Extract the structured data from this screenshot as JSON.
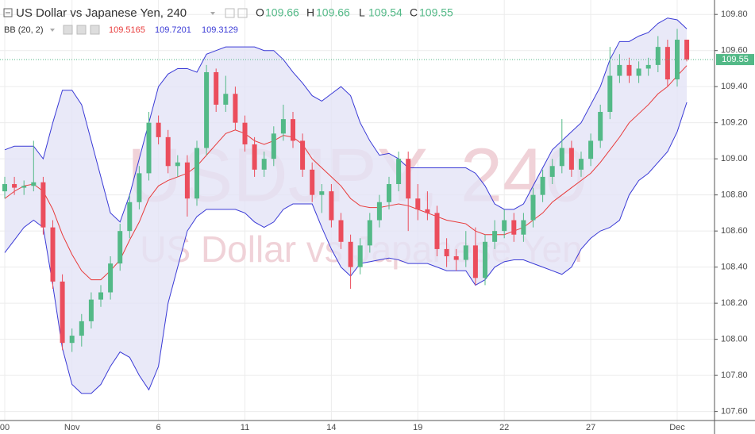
{
  "chart_data": {
    "type": "candlestick",
    "title": "US Dollar vs Japanese Yen, 240",
    "watermark": "USDJPY, 240",
    "watermark_subtitle": "US Dollar vs Japanese Yen",
    "header_labels": {
      "open": "O",
      "high": "H",
      "low": "L",
      "close": "C"
    },
    "indicator": "BB (20, 2)",
    "up_color": "#53b987",
    "down_color": "#eb4d5c",
    "basis_color": "#e83a3a",
    "band_color": "#3a3ad6",
    "band_fill": "#e3e3f6",
    "categories": [
      "00",
      null,
      null,
      null,
      null,
      null,
      null,
      "Nov",
      null,
      null,
      null,
      null,
      null,
      null,
      null,
      null,
      "6",
      null,
      null,
      null,
      null,
      null,
      null,
      null,
      null,
      "11",
      null,
      null,
      null,
      null,
      null,
      null,
      null,
      null,
      "14",
      null,
      null,
      null,
      null,
      null,
      null,
      null,
      null,
      "19",
      null,
      null,
      null,
      null,
      null,
      null,
      null,
      null,
      "22",
      null,
      null,
      null,
      null,
      null,
      null,
      null,
      null,
      "27",
      null,
      null,
      null,
      null,
      null,
      null,
      null,
      null,
      "Dec",
      null
    ],
    "ohlc": {
      "open": [
        108.82,
        108.86,
        108.84,
        108.85,
        108.87,
        108.62,
        108.32,
        107.98,
        108.02,
        108.1,
        108.22,
        108.26,
        108.42,
        108.6,
        108.76,
        108.92,
        109.2,
        109.12,
        108.96,
        108.98,
        108.78,
        109.06,
        109.48,
        109.3,
        109.36,
        109.2,
        109.08,
        108.94,
        109.0,
        109.14,
        109.22,
        109.1,
        108.94,
        108.8,
        108.82,
        108.66,
        108.54,
        108.4,
        108.52,
        108.66,
        108.76,
        108.86,
        109.0,
        108.78,
        108.72,
        108.7,
        108.5,
        108.46,
        108.44,
        108.52,
        108.34,
        108.54,
        108.6,
        108.66,
        108.58,
        108.66,
        108.8,
        108.9,
        108.96,
        109.06,
        108.94,
        109.0,
        109.1,
        109.26,
        109.46,
        109.52,
        109.46,
        109.5,
        109.52,
        109.62,
        109.44,
        109.66
      ],
      "high": [
        108.9,
        108.9,
        108.88,
        109.1,
        108.9,
        108.66,
        108.36,
        108.06,
        108.14,
        108.26,
        108.3,
        108.46,
        108.64,
        108.8,
        108.96,
        109.26,
        109.24,
        109.16,
        109.02,
        109.02,
        109.1,
        109.52,
        109.5,
        109.46,
        109.4,
        109.24,
        109.12,
        109.04,
        109.18,
        109.3,
        109.26,
        109.14,
        108.98,
        108.86,
        108.86,
        108.7,
        108.58,
        108.56,
        108.7,
        108.8,
        108.9,
        109.04,
        109.04,
        108.86,
        108.82,
        108.74,
        108.56,
        108.5,
        108.6,
        108.62,
        108.58,
        108.66,
        108.72,
        108.7,
        108.7,
        108.84,
        108.94,
        109.0,
        109.22,
        109.1,
        109.04,
        109.14,
        109.3,
        109.62,
        109.58,
        109.56,
        109.54,
        109.56,
        109.68,
        109.66,
        109.72,
        109.66
      ],
      "low": [
        108.78,
        108.8,
        108.8,
        108.82,
        108.58,
        108.28,
        107.94,
        107.93,
        107.96,
        108.06,
        108.18,
        108.22,
        108.38,
        108.56,
        108.72,
        108.88,
        109.08,
        108.92,
        108.9,
        108.68,
        108.74,
        109.02,
        109.26,
        109.26,
        109.16,
        109.04,
        108.9,
        108.9,
        108.96,
        109.1,
        109.06,
        108.9,
        108.76,
        108.7,
        108.62,
        108.5,
        108.28,
        108.36,
        108.48,
        108.62,
        108.72,
        108.82,
        108.6,
        108.66,
        108.66,
        108.46,
        108.4,
        108.38,
        108.4,
        108.3,
        108.3,
        108.5,
        108.56,
        108.54,
        108.54,
        108.62,
        108.76,
        108.86,
        108.92,
        108.9,
        108.9,
        108.96,
        109.06,
        109.22,
        109.42,
        109.42,
        109.42,
        109.46,
        109.48,
        109.4,
        109.4,
        109.54
      ],
      "close": [
        108.86,
        108.84,
        108.85,
        108.87,
        108.62,
        108.32,
        107.98,
        108.02,
        108.1,
        108.22,
        108.26,
        108.42,
        108.6,
        108.76,
        108.92,
        109.2,
        109.12,
        108.96,
        108.98,
        108.78,
        109.06,
        109.48,
        109.3,
        109.36,
        109.2,
        109.08,
        108.94,
        109.0,
        109.14,
        109.22,
        109.1,
        108.94,
        108.8,
        108.82,
        108.66,
        108.54,
        108.4,
        108.52,
        108.66,
        108.76,
        108.86,
        109.0,
        108.78,
        108.72,
        108.7,
        108.5,
        108.46,
        108.44,
        108.52,
        108.34,
        108.54,
        108.6,
        108.66,
        108.58,
        108.66,
        108.8,
        108.9,
        108.96,
        109.06,
        108.94,
        109.0,
        109.1,
        109.26,
        109.46,
        109.52,
        109.46,
        109.5,
        109.52,
        109.62,
        109.44,
        109.66,
        109.55
      ]
    },
    "bb_upper": [
      109.05,
      109.07,
      109.07,
      109.07,
      109.0,
      109.2,
      109.38,
      109.38,
      109.3,
      109.1,
      108.9,
      108.7,
      108.65,
      108.8,
      109.0,
      109.2,
      109.4,
      109.47,
      109.5,
      109.5,
      109.48,
      109.58,
      109.6,
      109.62,
      109.62,
      109.62,
      109.62,
      109.6,
      109.6,
      109.55,
      109.48,
      109.42,
      109.35,
      109.32,
      109.36,
      109.4,
      109.35,
      109.2,
      109.1,
      109.02,
      109.03,
      109.0,
      108.95,
      108.95,
      108.95,
      108.95,
      108.95,
      108.95,
      108.95,
      108.92,
      108.85,
      108.75,
      108.72,
      108.72,
      108.75,
      108.85,
      108.95,
      109.05,
      109.1,
      109.15,
      109.2,
      109.3,
      109.4,
      109.55,
      109.65,
      109.65,
      109.68,
      109.7,
      109.75,
      109.78,
      109.77,
      109.7201
    ],
    "bb_basis": [
      108.78,
      108.82,
      108.85,
      108.86,
      108.82,
      108.72,
      108.58,
      108.47,
      108.38,
      108.33,
      108.33,
      108.38,
      108.44,
      108.55,
      108.65,
      108.78,
      108.85,
      108.88,
      108.9,
      108.92,
      108.96,
      109.02,
      109.08,
      109.14,
      109.16,
      109.14,
      109.1,
      109.08,
      109.1,
      109.13,
      109.12,
      109.08,
      109.0,
      108.95,
      108.9,
      108.85,
      108.78,
      108.74,
      108.73,
      108.73,
      108.74,
      108.75,
      108.74,
      108.72,
      108.7,
      108.68,
      108.66,
      108.65,
      108.64,
      108.6,
      108.58,
      108.58,
      108.58,
      108.6,
      108.62,
      108.66,
      108.7,
      108.76,
      108.8,
      108.84,
      108.88,
      108.92,
      108.98,
      109.05,
      109.12,
      109.2,
      109.25,
      109.3,
      109.36,
      109.4,
      109.46,
      109.5165
    ],
    "bb_lower": [
      108.48,
      108.55,
      108.62,
      108.66,
      108.62,
      108.3,
      107.95,
      107.75,
      107.7,
      107.7,
      107.75,
      107.85,
      107.93,
      107.9,
      107.8,
      107.72,
      107.85,
      108.2,
      108.4,
      108.6,
      108.68,
      108.72,
      108.72,
      108.72,
      108.72,
      108.7,
      108.65,
      108.62,
      108.65,
      108.72,
      108.75,
      108.75,
      108.75,
      108.62,
      108.5,
      108.4,
      108.35,
      108.42,
      108.43,
      108.44,
      108.45,
      108.44,
      108.42,
      108.42,
      108.42,
      108.4,
      108.38,
      108.38,
      108.38,
      108.3,
      108.33,
      108.4,
      108.43,
      108.44,
      108.44,
      108.42,
      108.4,
      108.38,
      108.36,
      108.4,
      108.5,
      108.56,
      108.6,
      108.62,
      108.66,
      108.8,
      108.88,
      108.92,
      108.98,
      109.04,
      109.15,
      109.3129
    ],
    "ylim": [
      107.55,
      109.88
    ],
    "yticks": [
      {
        "value": 107.6,
        "label": "107.60"
      },
      {
        "value": 107.8,
        "label": "107.80"
      },
      {
        "value": 108,
        "label": "108.00"
      },
      {
        "value": 108.2,
        "label": "108.20"
      },
      {
        "value": 108.4,
        "label": "108.40"
      },
      {
        "value": 108.6,
        "label": "108.60"
      },
      {
        "value": 108.8,
        "label": "108.80"
      },
      {
        "value": 109,
        "label": "109.00"
      },
      {
        "value": 109.2,
        "label": "109.20"
      },
      {
        "value": 109.4,
        "label": "109.40"
      },
      {
        "value": 109.6,
        "label": "109.60"
      },
      {
        "value": 109.8,
        "label": "109.80"
      }
    ],
    "grid": true
  }
}
